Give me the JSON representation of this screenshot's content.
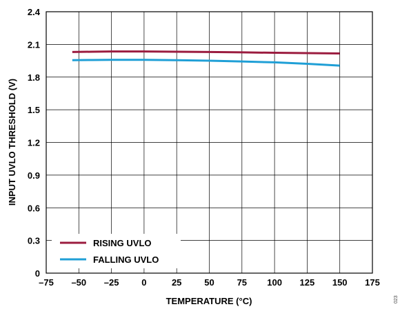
{
  "figure_id": "023",
  "chart_data": {
    "type": "line",
    "title": "",
    "xlabel": "TEMPERATURE (°C)",
    "ylabel": "INPUT UVLO THRESHOLD (V)",
    "xlim": [
      -75,
      175
    ],
    "ylim": [
      0,
      2.4
    ],
    "xticks": [
      -75,
      -50,
      -25,
      0,
      25,
      50,
      75,
      100,
      125,
      150,
      175
    ],
    "xtick_labels": [
      "–75",
      "–50",
      "–25",
      "0",
      "25",
      "50",
      "75",
      "100",
      "125",
      "150",
      "175"
    ],
    "yticks": [
      0,
      0.3,
      0.6,
      0.9,
      1.2,
      1.5,
      1.8,
      2.1,
      2.4
    ],
    "ytick_labels": [
      "0",
      "0.3",
      "0.6",
      "0.9",
      "1.2",
      "1.5",
      "1.8",
      "2.1",
      "2.4"
    ],
    "grid": true,
    "legend_position": "bottom-left",
    "series": [
      {
        "name": "RISING UVLO",
        "color": "#9b1c3f",
        "x": [
          -55,
          -40,
          -25,
          0,
          25,
          50,
          75,
          100,
          125,
          150
        ],
        "y": [
          2.03,
          2.033,
          2.035,
          2.035,
          2.033,
          2.03,
          2.027,
          2.023,
          2.02,
          2.017
        ]
      },
      {
        "name": "FALLING UVLO",
        "color": "#1f9fd6",
        "x": [
          -55,
          -40,
          -25,
          0,
          25,
          50,
          75,
          100,
          125,
          150
        ],
        "y": [
          1.955,
          1.957,
          1.958,
          1.958,
          1.955,
          1.95,
          1.943,
          1.935,
          1.922,
          1.905
        ]
      }
    ]
  }
}
